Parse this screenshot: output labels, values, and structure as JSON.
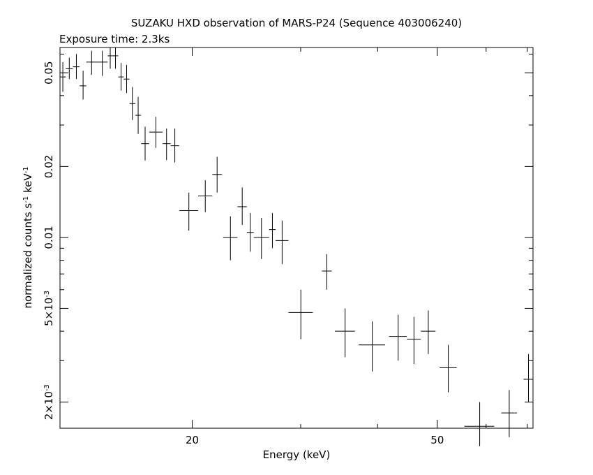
{
  "chart_data": {
    "type": "scatter",
    "title": "SUZAKU HXD observation of MARS-P24 (Sequence 403006240)",
    "subtitle": "Exposure time: 2.3ks",
    "xlabel": "Energy (keV)",
    "ylabel": "normalized counts s^-1 keV^-1",
    "x_scale": "log",
    "y_scale": "log",
    "xlim": [
      12.2,
      71.5
    ],
    "ylim": [
      0.00155,
      0.064
    ],
    "x_ticks": [
      {
        "value": 20,
        "label": "20"
      },
      {
        "value": 50,
        "label": "50"
      }
    ],
    "y_ticks": [
      {
        "value": 0.05,
        "label": "0.05"
      },
      {
        "value": 0.02,
        "label": "0.02"
      },
      {
        "value": 0.01,
        "label": "0.01"
      },
      {
        "value": 0.005,
        "label": "5×10^-3"
      },
      {
        "value": 0.002,
        "label": "2×10^-3"
      }
    ],
    "grid": false,
    "points": [
      {
        "x": 12.33,
        "xerr": [
          12.2,
          12.47
        ],
        "y": 0.048,
        "yerr": [
          0.0415,
          0.0555
        ]
      },
      {
        "x": 12.63,
        "xerr": [
          12.47,
          12.8
        ],
        "y": 0.052,
        "yerr": [
          0.047,
          0.058
        ]
      },
      {
        "x": 12.97,
        "xerr": [
          12.8,
          13.13
        ],
        "y": 0.053,
        "yerr": [
          0.047,
          0.06
        ]
      },
      {
        "x": 13.3,
        "xerr": [
          13.13,
          13.46
        ],
        "y": 0.044,
        "yerr": [
          0.0385,
          0.051
        ]
      },
      {
        "x": 13.73,
        "xerr": [
          13.46,
          14.02
        ],
        "y": 0.0555,
        "yerr": [
          0.049,
          0.062
        ]
      },
      {
        "x": 14.29,
        "xerr": [
          14.02,
          14.58
        ],
        "y": 0.0555,
        "yerr": [
          0.0485,
          0.062
        ]
      },
      {
        "x": 14.72,
        "xerr": [
          14.58,
          14.87
        ],
        "y": 0.059,
        "yerr": [
          0.052,
          0.064
        ]
      },
      {
        "x": 15.01,
        "xerr": [
          14.87,
          15.17
        ],
        "y": 0.059,
        "yerr": [
          0.052,
          0.064
        ]
      },
      {
        "x": 15.33,
        "xerr": [
          15.17,
          15.48
        ],
        "y": 0.048,
        "yerr": [
          0.042,
          0.055
        ]
      },
      {
        "x": 15.65,
        "xerr": [
          15.48,
          15.82
        ],
        "y": 0.047,
        "yerr": [
          0.041,
          0.054
        ]
      },
      {
        "x": 15.99,
        "xerr": [
          15.82,
          16.17
        ],
        "y": 0.037,
        "yerr": [
          0.0315,
          0.0435
        ]
      },
      {
        "x": 16.34,
        "xerr": [
          16.17,
          16.52
        ],
        "y": 0.033,
        "yerr": [
          0.0275,
          0.0395
        ]
      },
      {
        "x": 16.77,
        "xerr": [
          16.52,
          17.03
        ],
        "y": 0.025,
        "yerr": [
          0.0212,
          0.0295
        ]
      },
      {
        "x": 17.46,
        "xerr": [
          17.03,
          17.9
        ],
        "y": 0.028,
        "yerr": [
          0.024,
          0.0325
        ]
      },
      {
        "x": 18.17,
        "xerr": [
          17.9,
          18.45
        ],
        "y": 0.025,
        "yerr": [
          0.0213,
          0.029
        ]
      },
      {
        "x": 18.74,
        "xerr": [
          18.45,
          19.05
        ],
        "y": 0.0245,
        "yerr": [
          0.0208,
          0.029
        ]
      },
      {
        "x": 19.75,
        "xerr": [
          19.05,
          20.45
        ],
        "y": 0.013,
        "yerr": [
          0.0107,
          0.0155
        ]
      },
      {
        "x": 21.0,
        "xerr": [
          20.45,
          21.56
        ],
        "y": 0.015,
        "yerr": [
          0.0128,
          0.0175
        ]
      },
      {
        "x": 21.95,
        "xerr": [
          21.56,
          22.35
        ],
        "y": 0.0185,
        "yerr": [
          0.0155,
          0.022
        ]
      },
      {
        "x": 23.07,
        "xerr": [
          22.45,
          23.69
        ],
        "y": 0.01,
        "yerr": [
          0.008,
          0.0123
        ]
      },
      {
        "x": 24.11,
        "xerr": [
          23.69,
          24.53
        ],
        "y": 0.0135,
        "yerr": [
          0.0113,
          0.0163
        ]
      },
      {
        "x": 24.85,
        "xerr": [
          24.53,
          25.17
        ],
        "y": 0.0105,
        "yerr": [
          0.0087,
          0.0127
        ]
      },
      {
        "x": 25.91,
        "xerr": [
          25.17,
          26.66
        ],
        "y": 0.01,
        "yerr": [
          0.0081,
          0.0121
        ]
      },
      {
        "x": 26.99,
        "xerr": [
          26.66,
          27.32
        ],
        "y": 0.0108,
        "yerr": [
          0.009,
          0.0127
        ]
      },
      {
        "x": 27.99,
        "xerr": [
          27.32,
          28.66
        ],
        "y": 0.0097,
        "yerr": [
          0.0077,
          0.0118
        ]
      },
      {
        "x": 30.02,
        "xerr": [
          28.66,
          31.39
        ],
        "y": 0.0048,
        "yerr": [
          0.0037,
          0.006
        ]
      },
      {
        "x": 33.08,
        "xerr": [
          32.48,
          33.69
        ],
        "y": 0.0072,
        "yerr": [
          0.006,
          0.0085
        ]
      },
      {
        "x": 35.42,
        "xerr": [
          34.09,
          36.75
        ],
        "y": 0.004,
        "yerr": [
          0.0031,
          0.005
        ]
      },
      {
        "x": 39.2,
        "xerr": [
          37.27,
          41.13
        ],
        "y": 0.0035,
        "yerr": [
          0.0027,
          0.0044
        ]
      },
      {
        "x": 43.19,
        "xerr": [
          41.75,
          44.62
        ],
        "y": 0.0038,
        "yerr": [
          0.003,
          0.0047
        ]
      },
      {
        "x": 45.82,
        "xerr": [
          44.62,
          47.01
        ],
        "y": 0.0037,
        "yerr": [
          0.0029,
          0.0046
        ]
      },
      {
        "x": 48.34,
        "xerr": [
          47.01,
          49.66
        ],
        "y": 0.004,
        "yerr": [
          0.0032,
          0.0049
        ]
      },
      {
        "x": 52.09,
        "xerr": [
          50.43,
          53.76
        ],
        "y": 0.0028,
        "yerr": [
          0.0022,
          0.0035
        ]
      },
      {
        "x": 58.58,
        "xerr": [
          55.3,
          61.85
        ],
        "y": 0.00158,
        "yerr": [
          0.0013,
          0.002
        ]
      },
      {
        "x": 65.42,
        "xerr": [
          63.49,
          67.35
        ],
        "y": 0.0018,
        "yerr": [
          0.00142,
          0.00225
        ]
      },
      {
        "x": 70.3,
        "xerr": [
          69.0,
          71.5
        ],
        "y": 0.0025,
        "yerr": [
          0.002,
          0.0032
        ]
      }
    ]
  }
}
